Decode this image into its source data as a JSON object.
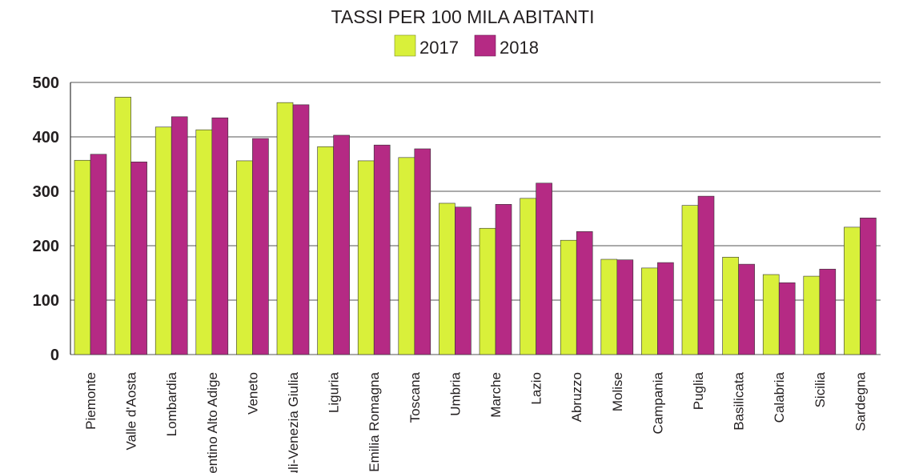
{
  "chart_data": {
    "type": "bar",
    "title": "TASSI PER 100 MILA ABITANTI",
    "xlabel": "",
    "ylabel": "",
    "ylim": [
      0,
      500
    ],
    "yticks": [
      "0",
      "100",
      "200",
      "300",
      "400",
      "500"
    ],
    "grid": true,
    "legend_position": "top-center",
    "categories": [
      "Piemonte",
      "Valle d'Aosta",
      "Lombardia",
      "Trentino Alto Adige",
      "Veneto",
      "Friuli-Venezia Giulia",
      "Liguria",
      "Emilia Romagna",
      "Toscana",
      "Umbria",
      "Marche",
      "Lazio",
      "Abruzzo",
      "Molise",
      "Campania",
      "Puglia",
      "Basilicata",
      "Calabria",
      "Sicilia",
      "Sardegna"
    ],
    "series": [
      {
        "name": "2017",
        "color": "#d9f03a",
        "values": [
          357,
          473,
          418,
          413,
          356,
          463,
          382,
          356,
          362,
          278,
          232,
          287,
          210,
          175,
          159,
          274,
          179,
          147,
          144,
          234
        ]
      },
      {
        "name": "2018",
        "color": "#b52a84",
        "values": [
          368,
          354,
          437,
          435,
          397,
          459,
          403,
          385,
          378,
          271,
          276,
          315,
          226,
          174,
          169,
          291,
          166,
          132,
          157,
          251
        ]
      }
    ]
  }
}
